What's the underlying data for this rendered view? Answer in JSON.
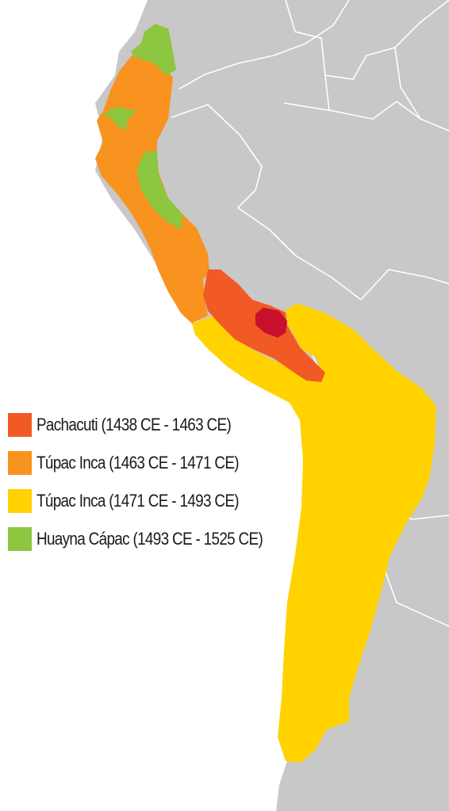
{
  "map": {
    "colors": {
      "ocean": "#ffffff",
      "land": "#c8c8c8",
      "borders": "#ffffff",
      "capital": "#c8102e"
    },
    "legend": [
      {
        "label": "Pachacuti (1438 CE - 1463 CE)",
        "color": "#f15a24"
      },
      {
        "label": "Túpac Inca (1463 CE - 1471 CE)",
        "color": "#f7931e"
      },
      {
        "label": "Túpac Inca (1471 CE - 1493 CE)",
        "color": "#ffd200"
      },
      {
        "label": "Huayna Cápac (1493 CE - 1525 CE)",
        "color": "#8dc63f"
      }
    ]
  }
}
